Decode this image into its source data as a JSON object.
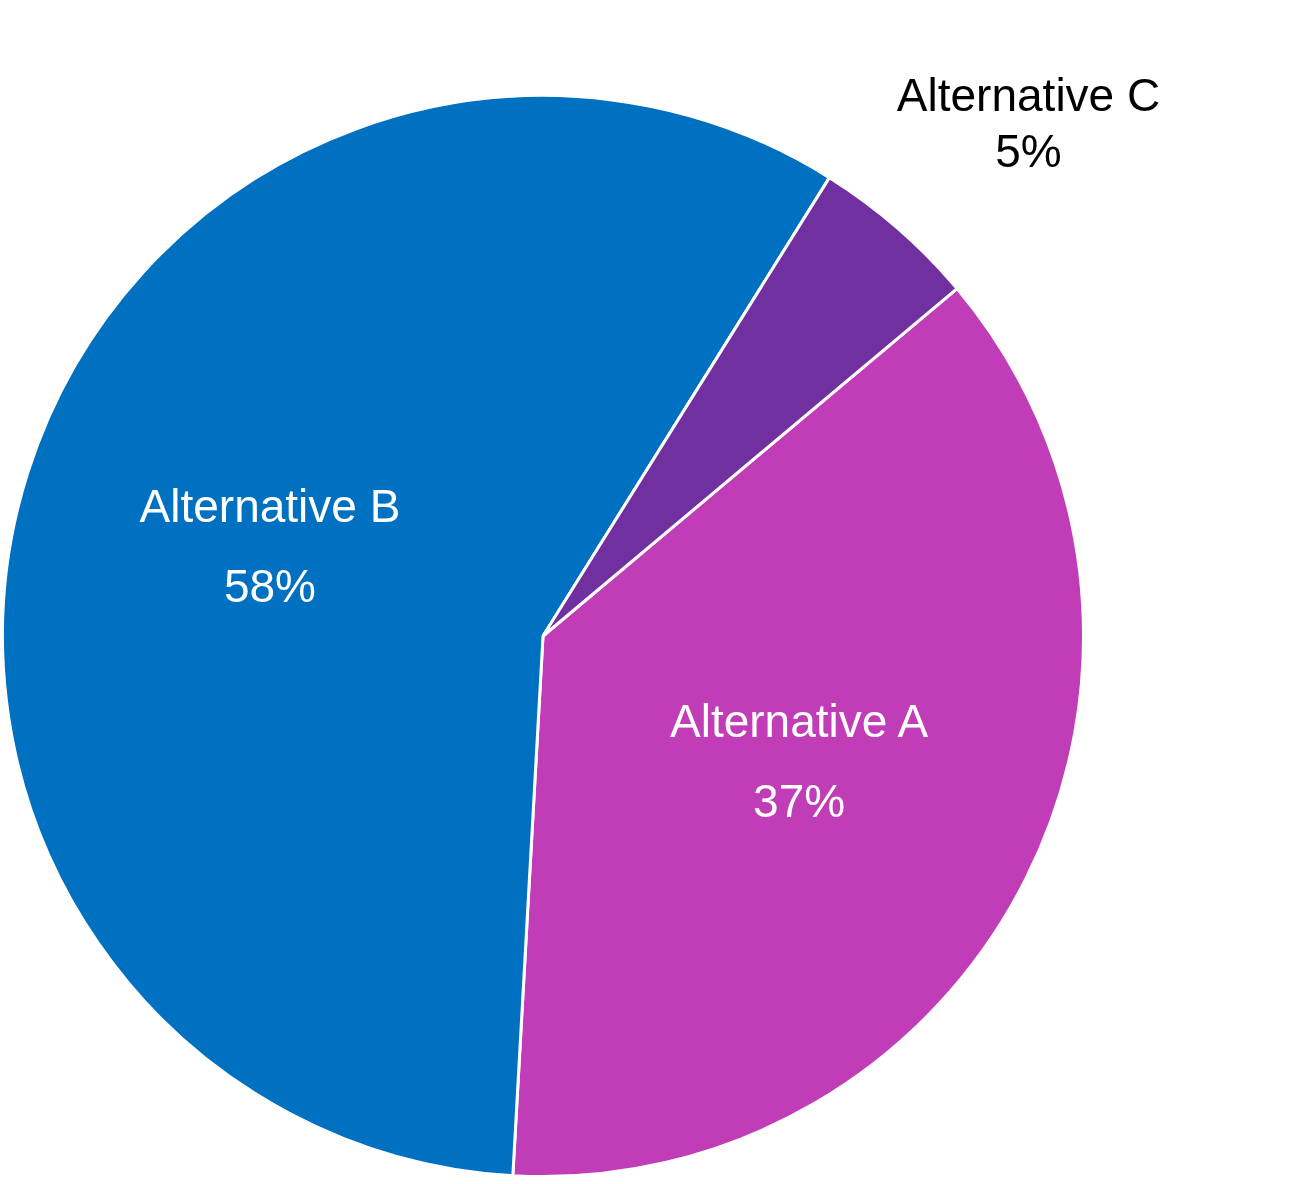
{
  "chart_data": {
    "type": "pie",
    "categories": [
      "Alternative A",
      "Alternative B",
      "Alternative C"
    ],
    "values": [
      37,
      58,
      5
    ],
    "colors": [
      "#c13db7",
      "#0070c0",
      "#7030a0"
    ],
    "value_labels": [
      "37%",
      "58%",
      "5%"
    ],
    "legend": false
  }
}
